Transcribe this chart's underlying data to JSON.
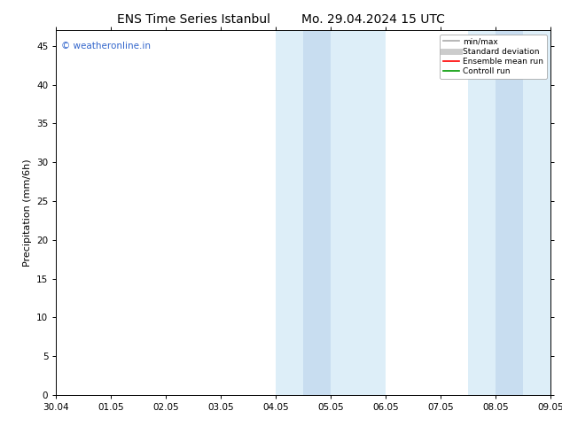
{
  "title_left": "ENS Time Series Istanbul",
  "title_right": "Mo. 29.04.2024 15 UTC",
  "ylabel": "Precipitation (mm/6h)",
  "xlabel_ticks": [
    "30.04",
    "01.05",
    "02.05",
    "03.05",
    "04.05",
    "05.05",
    "06.05",
    "07.05",
    "08.05",
    "09.05"
  ],
  "xlim": [
    0,
    9
  ],
  "ylim": [
    0,
    47
  ],
  "yticks": [
    0,
    5,
    10,
    15,
    20,
    25,
    30,
    35,
    40,
    45
  ],
  "background_color": "#ffffff",
  "plot_bg_color": "#ffffff",
  "shaded_regions": [
    {
      "x_start": 4.0,
      "x_end": 4.5,
      "color": "#ddeef8"
    },
    {
      "x_start": 4.5,
      "x_end": 5.0,
      "color": "#c8ddf0"
    },
    {
      "x_start": 5.0,
      "x_end": 6.0,
      "color": "#ddeef8"
    },
    {
      "x_start": 7.5,
      "x_end": 8.0,
      "color": "#ddeef8"
    },
    {
      "x_start": 8.0,
      "x_end": 8.5,
      "color": "#c8ddf0"
    },
    {
      "x_start": 8.5,
      "x_end": 9.0,
      "color": "#ddeef8"
    }
  ],
  "watermark_text": "© weatheronline.in",
  "watermark_color": "#3366cc",
  "legend_items": [
    {
      "label": "min/max",
      "color": "#aaaaaa",
      "lw": 1.2,
      "style": "solid"
    },
    {
      "label": "Standard deviation",
      "color": "#cccccc",
      "lw": 5,
      "style": "solid"
    },
    {
      "label": "Ensemble mean run",
      "color": "#ff0000",
      "lw": 1.2,
      "style": "solid"
    },
    {
      "label": "Controll run",
      "color": "#009900",
      "lw": 1.2,
      "style": "solid"
    }
  ],
  "title_fontsize": 10,
  "tick_fontsize": 7.5,
  "ylabel_fontsize": 8,
  "watermark_fontsize": 7.5
}
